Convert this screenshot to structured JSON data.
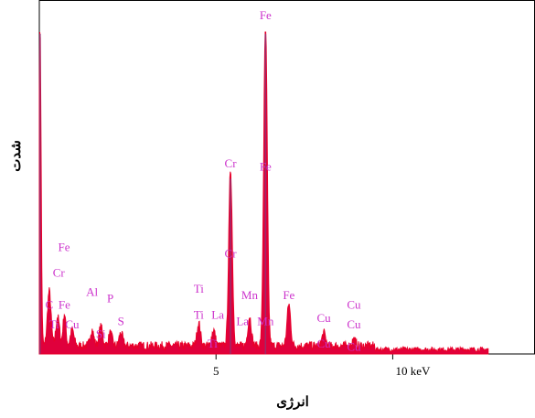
{
  "chart_data": {
    "type": "line",
    "title": "",
    "xlabel": "انرژی",
    "ylabel": "شدت",
    "xlim": [
      0,
      14
    ],
    "ylim": [
      0,
      100
    ],
    "x_ticks": [
      {
        "value": 5,
        "label": "5"
      },
      {
        "value": 10,
        "label": "10 keV"
      }
    ],
    "grid": false,
    "legend": "none",
    "colors": {
      "spectrum": "#e8002a",
      "spectrum_fill": "#e0003c",
      "peak_highlight": "#9b2c6a",
      "labels": "#cc33cc"
    },
    "spectrum_peaks": [
      {
        "x": 0.02,
        "y": 100,
        "w": 0.03
      },
      {
        "x": 0.28,
        "y": 17,
        "w": 0.05
      },
      {
        "x": 0.52,
        "y": 9,
        "w": 0.05
      },
      {
        "x": 0.71,
        "y": 10,
        "w": 0.04
      },
      {
        "x": 0.93,
        "y": 5,
        "w": 0.05
      },
      {
        "x": 1.49,
        "y": 5,
        "w": 0.05
      },
      {
        "x": 1.74,
        "y": 6,
        "w": 0.05
      },
      {
        "x": 2.01,
        "y": 4,
        "w": 0.05
      },
      {
        "x": 2.31,
        "y": 4,
        "w": 0.05
      },
      {
        "x": 4.51,
        "y": 7,
        "w": 0.05
      },
      {
        "x": 4.93,
        "y": 5,
        "w": 0.05
      },
      {
        "x": 5.41,
        "y": 55,
        "w": 0.05
      },
      {
        "x": 5.95,
        "y": 9,
        "w": 0.05
      },
      {
        "x": 6.4,
        "y": 100,
        "w": 0.05
      },
      {
        "x": 7.06,
        "y": 13,
        "w": 0.05
      },
      {
        "x": 8.05,
        "y": 4,
        "w": 0.05
      },
      {
        "x": 8.9,
        "y": 2,
        "w": 0.05
      }
    ],
    "background_level": 3,
    "spectrum_end_x": 12.7,
    "peak_labels": [
      {
        "text": "Fe",
        "x": 6.4,
        "y": 104
      },
      {
        "text": "Cr",
        "x": 5.41,
        "y": 58
      },
      {
        "text": "Fe",
        "x": 6.4,
        "y": 57
      },
      {
        "text": "Cr",
        "x": 5.41,
        "y": 30
      },
      {
        "text": "Mn",
        "x": 5.95,
        "y": 17
      },
      {
        "text": "Fe",
        "x": 7.06,
        "y": 17
      },
      {
        "text": "Mn",
        "x": 6.4,
        "y": 9
      },
      {
        "text": "Ti",
        "x": 4.51,
        "y": 19
      },
      {
        "text": "Ti",
        "x": 4.51,
        "y": 11
      },
      {
        "text": "La",
        "x": 5.05,
        "y": 11
      },
      {
        "text": "La",
        "x": 5.75,
        "y": 9
      },
      {
        "text": "Ti",
        "x": 4.9,
        "y": 2
      },
      {
        "text": "Fe",
        "x": 0.7,
        "y": 32
      },
      {
        "text": "Cr",
        "x": 0.55,
        "y": 24
      },
      {
        "text": "C",
        "x": 0.28,
        "y": 14
      },
      {
        "text": "Fe",
        "x": 0.71,
        "y": 14
      },
      {
        "text": "Ti",
        "x": 0.42,
        "y": 8
      },
      {
        "text": "Cu",
        "x": 0.93,
        "y": 8
      },
      {
        "text": "Al",
        "x": 1.49,
        "y": 18
      },
      {
        "text": "P",
        "x": 2.01,
        "y": 16
      },
      {
        "text": "S",
        "x": 2.31,
        "y": 9
      },
      {
        "text": "Si",
        "x": 1.74,
        "y": 5
      },
      {
        "text": "Cu",
        "x": 8.05,
        "y": 10
      },
      {
        "text": "Cu",
        "x": 8.9,
        "y": 14
      },
      {
        "text": "Cu",
        "x": 8.9,
        "y": 8
      },
      {
        "text": "Cu",
        "x": 8.05,
        "y": 2
      },
      {
        "text": "Cu",
        "x": 8.9,
        "y": 1
      }
    ]
  }
}
